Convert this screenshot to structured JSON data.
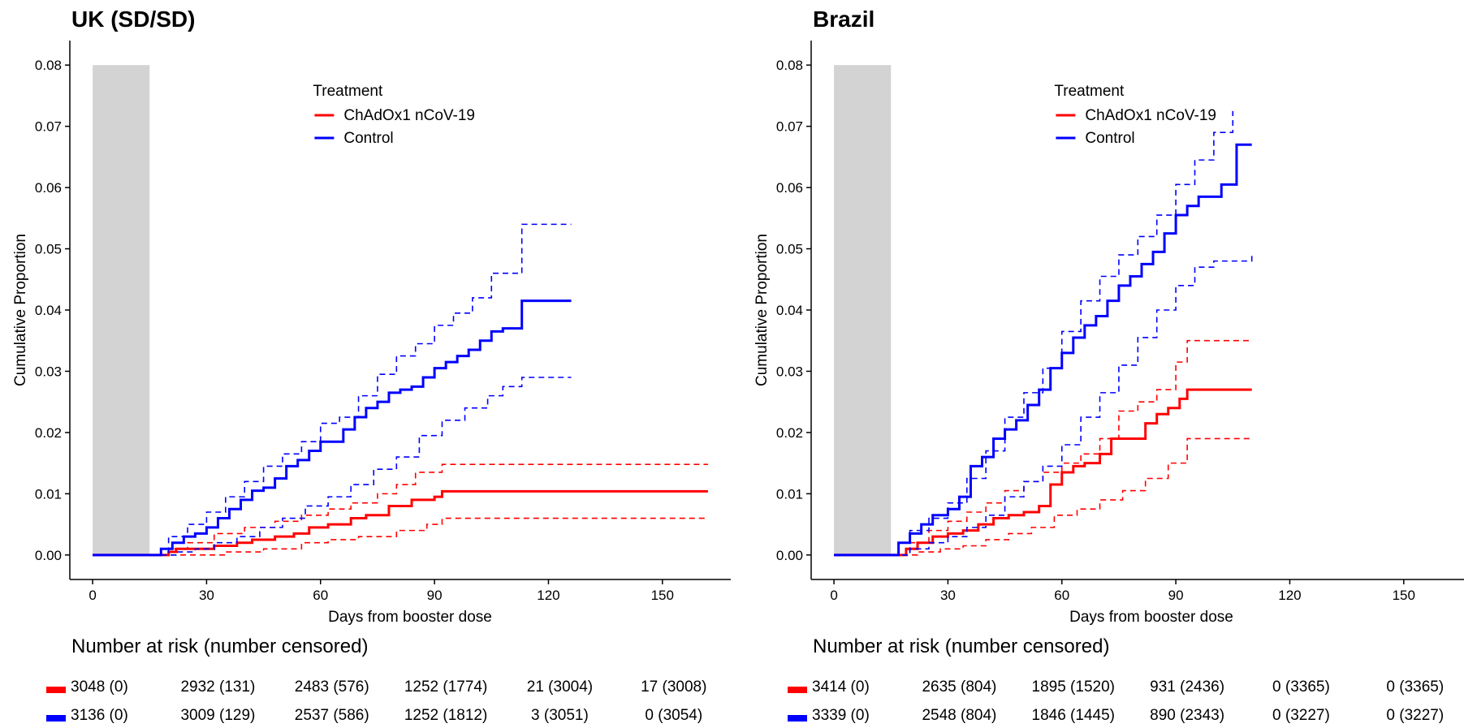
{
  "chart_data": [
    {
      "type": "line",
      "chart_kind": "cumulative incidence step curves with 95% CI",
      "title": "UK (SD/SD)",
      "xlabel": "Days from booster dose",
      "ylabel": "Cumulative Proportion",
      "xlim": [
        -6,
        168
      ],
      "ylim": [
        -0.004,
        0.084
      ],
      "xticks": [
        0,
        30,
        60,
        90,
        120,
        150
      ],
      "yticks": [
        0.0,
        0.01,
        0.02,
        0.03,
        0.04,
        0.05,
        0.06,
        0.07,
        0.08
      ],
      "ytick_labels": [
        "0.00",
        "0.01",
        "0.02",
        "0.03",
        "0.04",
        "0.05",
        "0.06",
        "0.07",
        "0.08"
      ],
      "shaded_region": {
        "x": [
          0,
          15
        ],
        "y": [
          0,
          0.08
        ],
        "color": "#d3d3d3"
      },
      "legend": {
        "title": "Treatment",
        "position": "top-center"
      },
      "series": [
        {
          "name": "ChAdOx1 nCoV-19",
          "color": "#ff0000",
          "style": "solid",
          "x": [
            0,
            15,
            20,
            22,
            25,
            32,
            38,
            42,
            48,
            53,
            57,
            62,
            68,
            72,
            78,
            84,
            90,
            92,
            162
          ],
          "y": [
            0,
            0,
            0.0005,
            0.001,
            0.001,
            0.0015,
            0.002,
            0.0025,
            0.003,
            0.0035,
            0.0045,
            0.005,
            0.006,
            0.0065,
            0.008,
            0.009,
            0.0095,
            0.0104,
            0.0104
          ]
        },
        {
          "name": "ChAdOx1 nCoV-19 upper CI",
          "color": "#ff0000",
          "style": "dashed",
          "x": [
            0,
            15,
            20,
            25,
            32,
            40,
            48,
            55,
            62,
            68,
            75,
            80,
            85,
            92,
            162
          ],
          "y": [
            0,
            0,
            0.001,
            0.002,
            0.0035,
            0.0045,
            0.0055,
            0.0065,
            0.0075,
            0.0085,
            0.01,
            0.0115,
            0.0135,
            0.0148,
            0.0148
          ]
        },
        {
          "name": "ChAdOx1 nCoV-19 lower CI",
          "color": "#ff0000",
          "style": "dashed",
          "x": [
            0,
            15,
            24,
            35,
            45,
            55,
            62,
            70,
            80,
            88,
            92,
            162
          ],
          "y": [
            0,
            0,
            0,
            0.0005,
            0.001,
            0.002,
            0.0025,
            0.003,
            0.004,
            0.005,
            0.006,
            0.006
          ]
        },
        {
          "name": "Control",
          "color": "#0000ff",
          "style": "solid",
          "x": [
            0,
            15,
            18,
            21,
            24,
            27,
            30,
            33,
            36,
            39,
            42,
            45,
            48,
            51,
            54,
            57,
            60,
            63,
            66,
            69,
            72,
            75,
            78,
            81,
            84,
            87,
            90,
            93,
            96,
            99,
            102,
            105,
            108,
            113,
            126
          ],
          "y": [
            0,
            0,
            0.001,
            0.002,
            0.003,
            0.0035,
            0.0045,
            0.006,
            0.0075,
            0.009,
            0.0105,
            0.011,
            0.0125,
            0.0145,
            0.0155,
            0.017,
            0.0185,
            0.0185,
            0.0205,
            0.0225,
            0.024,
            0.025,
            0.0265,
            0.027,
            0.0275,
            0.029,
            0.0305,
            0.0315,
            0.0325,
            0.0335,
            0.035,
            0.0365,
            0.037,
            0.0415,
            0.0415
          ]
        },
        {
          "name": "Control upper CI",
          "color": "#0000ff",
          "style": "dashed",
          "x": [
            0,
            15,
            20,
            25,
            30,
            35,
            40,
            45,
            50,
            55,
            60,
            65,
            70,
            75,
            80,
            85,
            90,
            95,
            100,
            105,
            113,
            126
          ],
          "y": [
            0,
            0,
            0.003,
            0.005,
            0.007,
            0.0095,
            0.012,
            0.0145,
            0.0165,
            0.0185,
            0.0215,
            0.0225,
            0.026,
            0.0295,
            0.0325,
            0.0345,
            0.0375,
            0.0395,
            0.042,
            0.046,
            0.054,
            0.054
          ]
        },
        {
          "name": "Control lower CI",
          "color": "#0000ff",
          "style": "dashed",
          "x": [
            0,
            15,
            22,
            27,
            32,
            38,
            44,
            50,
            56,
            62,
            68,
            74,
            80,
            86,
            92,
            98,
            104,
            108,
            113,
            126
          ],
          "y": [
            0,
            0,
            0.0005,
            0.001,
            0.002,
            0.003,
            0.0045,
            0.006,
            0.008,
            0.0095,
            0.0115,
            0.014,
            0.016,
            0.0195,
            0.022,
            0.024,
            0.026,
            0.0275,
            0.029,
            0.029
          ]
        }
      ],
      "risk_table": {
        "title": "Number at risk (number censored)",
        "time_points": [
          0,
          30,
          60,
          90,
          120,
          150
        ],
        "rows": [
          {
            "color": "#ff0000",
            "values": [
              "3048 (0)",
              "2932 (131)",
              "2483 (576)",
              "1252 (1774)",
              "21 (3004)",
              "17 (3008)"
            ]
          },
          {
            "color": "#0000ff",
            "values": [
              "3136 (0)",
              "3009 (129)",
              "2537 (586)",
              "1252 (1812)",
              "3 (3051)",
              "0 (3054)"
            ]
          }
        ]
      }
    },
    {
      "type": "line",
      "chart_kind": "cumulative incidence step curves with 95% CI",
      "title": "Brazil",
      "xlabel": "Days from booster dose",
      "ylabel": "Cumulative Proportion",
      "xlim": [
        -6,
        168
      ],
      "ylim": [
        -0.004,
        0.084
      ],
      "xticks": [
        0,
        30,
        60,
        90,
        120,
        150
      ],
      "yticks": [
        0.0,
        0.01,
        0.02,
        0.03,
        0.04,
        0.05,
        0.06,
        0.07,
        0.08
      ],
      "ytick_labels": [
        "0.00",
        "0.01",
        "0.02",
        "0.03",
        "0.04",
        "0.05",
        "0.06",
        "0.07",
        "0.08"
      ],
      "shaded_region": {
        "x": [
          0,
          15
        ],
        "y": [
          0,
          0.08
        ],
        "color": "#d3d3d3"
      },
      "legend": {
        "title": "Treatment",
        "position": "top-center"
      },
      "series": [
        {
          "name": "ChAdOx1 nCoV-19",
          "color": "#ff0000",
          "style": "solid",
          "x": [
            0,
            15,
            19,
            22,
            26,
            30,
            34,
            38,
            42,
            46,
            50,
            54,
            57,
            60,
            63,
            66,
            70,
            73,
            78,
            82,
            85,
            88,
            91,
            93,
            110
          ],
          "y": [
            0,
            0,
            0.001,
            0.002,
            0.003,
            0.0035,
            0.004,
            0.005,
            0.006,
            0.0065,
            0.007,
            0.008,
            0.0115,
            0.0135,
            0.0145,
            0.015,
            0.0165,
            0.019,
            0.019,
            0.0215,
            0.023,
            0.024,
            0.0255,
            0.027,
            0.027
          ]
        },
        {
          "name": "ChAdOx1 nCoV-19 upper CI",
          "color": "#ff0000",
          "style": "dashed",
          "x": [
            0,
            15,
            20,
            25,
            30,
            35,
            40,
            45,
            50,
            55,
            60,
            65,
            70,
            75,
            80,
            85,
            90,
            93,
            110
          ],
          "y": [
            0,
            0,
            0.002,
            0.004,
            0.0055,
            0.007,
            0.0085,
            0.0105,
            0.012,
            0.0135,
            0.015,
            0.0165,
            0.019,
            0.0235,
            0.025,
            0.027,
            0.0315,
            0.035,
            0.035
          ]
        },
        {
          "name": "ChAdOx1 nCoV-19 lower CI",
          "color": "#ff0000",
          "style": "dashed",
          "x": [
            0,
            15,
            22,
            28,
            34,
            40,
            46,
            52,
            58,
            64,
            70,
            76,
            82,
            88,
            93,
            110
          ],
          "y": [
            0,
            0,
            0.0005,
            0.001,
            0.0015,
            0.0025,
            0.0035,
            0.0045,
            0.0065,
            0.0075,
            0.009,
            0.0105,
            0.0125,
            0.015,
            0.019,
            0.019
          ]
        },
        {
          "name": "Control",
          "color": "#0000ff",
          "style": "solid",
          "x": [
            0,
            15,
            17,
            20,
            23,
            26,
            30,
            33,
            36,
            39,
            42,
            45,
            48,
            51,
            54,
            57,
            60,
            63,
            66,
            69,
            72,
            75,
            78,
            81,
            84,
            87,
            90,
            93,
            96,
            99,
            102,
            106,
            110
          ],
          "y": [
            0,
            0,
            0.002,
            0.0035,
            0.005,
            0.0065,
            0.0075,
            0.0095,
            0.0145,
            0.016,
            0.019,
            0.0205,
            0.022,
            0.0245,
            0.027,
            0.0305,
            0.033,
            0.0355,
            0.0375,
            0.039,
            0.0415,
            0.044,
            0.0455,
            0.0475,
            0.0495,
            0.0525,
            0.0555,
            0.057,
            0.0585,
            0.0585,
            0.0605,
            0.067,
            0.067
          ]
        },
        {
          "name": "Control upper CI",
          "color": "#0000ff",
          "style": "dashed",
          "x": [
            0,
            15,
            20,
            25,
            30,
            35,
            40,
            45,
            50,
            55,
            60,
            65,
            70,
            75,
            80,
            85,
            90,
            95,
            100,
            105
          ],
          "y": [
            0,
            0,
            0.004,
            0.006,
            0.0085,
            0.0125,
            0.017,
            0.0225,
            0.0265,
            0.0305,
            0.0365,
            0.0415,
            0.0455,
            0.049,
            0.052,
            0.0555,
            0.0605,
            0.0645,
            0.069,
            0.0725
          ]
        },
        {
          "name": "Control lower CI",
          "color": "#0000ff",
          "style": "dashed",
          "x": [
            0,
            15,
            20,
            25,
            30,
            35,
            40,
            45,
            50,
            55,
            60,
            65,
            70,
            75,
            80,
            85,
            90,
            95,
            100,
            110
          ],
          "y": [
            0,
            0,
            0.001,
            0.002,
            0.003,
            0.0045,
            0.0065,
            0.0095,
            0.012,
            0.0145,
            0.018,
            0.0225,
            0.0265,
            0.031,
            0.0355,
            0.04,
            0.044,
            0.047,
            0.048,
            0.0492
          ]
        }
      ],
      "risk_table": {
        "title": "Number at risk (number censored)",
        "time_points": [
          0,
          30,
          60,
          90,
          120,
          150
        ],
        "rows": [
          {
            "color": "#ff0000",
            "values": [
              "3414 (0)",
              "2635 (804)",
              "1895 (1520)",
              "931 (2436)",
              "0 (3365)",
              "0 (3365)"
            ]
          },
          {
            "color": "#0000ff",
            "values": [
              "3339 (0)",
              "2548 (804)",
              "1846 (1445)",
              "890 (2343)",
              "0 (3227)",
              "0 (3227)"
            ]
          }
        ]
      }
    }
  ]
}
